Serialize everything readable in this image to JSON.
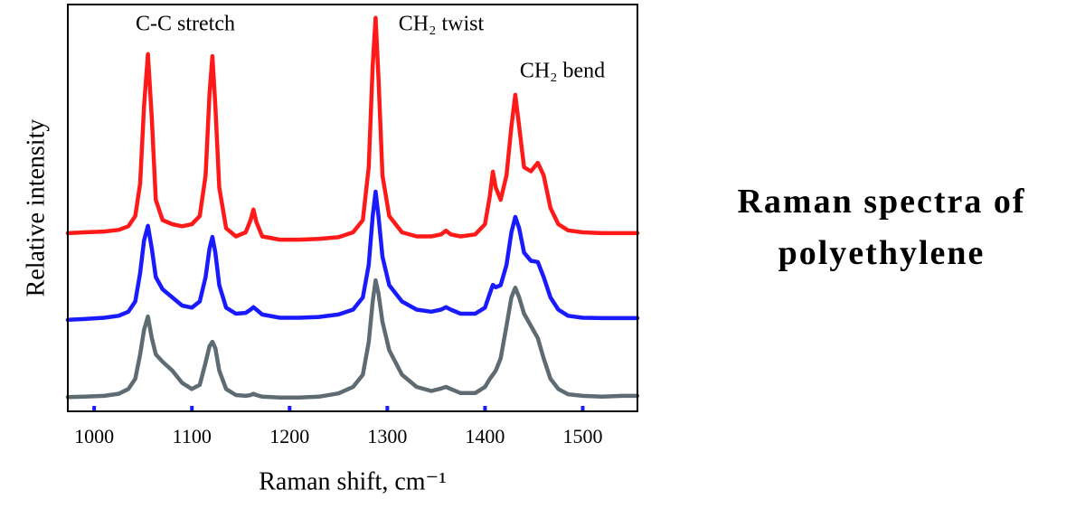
{
  "chart_data": {
    "type": "line",
    "title": "Raman spectra of polyethylene",
    "xlabel": "Raman shift, cm⁻¹",
    "ylabel": "Relative intensity",
    "annotations": [
      "C-C stretch",
      "CH₂ twist",
      "CH₂ bend"
    ],
    "xlim": [
      973,
      1556
    ],
    "xticks": [
      1000,
      1100,
      1200,
      1300,
      1400,
      1500
    ],
    "ylim": [
      0,
      100
    ],
    "x": [
      973,
      990,
      1010,
      1025,
      1035,
      1042,
      1047,
      1051,
      1055,
      1059,
      1063,
      1070,
      1080,
      1090,
      1100,
      1108,
      1114,
      1118,
      1121,
      1124,
      1128,
      1135,
      1145,
      1155,
      1160,
      1163,
      1166,
      1172,
      1190,
      1210,
      1230,
      1250,
      1265,
      1275,
      1281,
      1285,
      1288,
      1291,
      1295,
      1302,
      1315,
      1330,
      1345,
      1355,
      1360,
      1365,
      1375,
      1390,
      1400,
      1405,
      1408,
      1411,
      1416,
      1422,
      1427,
      1431,
      1435,
      1440,
      1447,
      1454,
      1460,
      1467,
      1475,
      1485,
      1500,
      1520,
      1540,
      1556
    ],
    "series": [
      {
        "color": "#ff1a1a",
        "values": [
          43.8,
          44,
          44.2,
          44.6,
          45.5,
          48,
          56,
          75,
          87.8,
          72,
          52,
          47,
          46,
          45.5,
          46,
          48,
          58,
          78,
          87.3,
          75,
          55,
          45,
          43,
          44,
          47,
          49.6,
          46.5,
          43,
          42.2,
          42.2,
          42.4,
          42.8,
          44,
          47,
          60,
          85,
          96.7,
          82,
          58,
          48,
          44,
          43,
          43,
          43.5,
          44.4,
          43.5,
          43,
          43.5,
          46,
          53,
          58.9,
          55,
          52,
          58,
          70,
          77.8,
          70,
          60,
          59,
          61.1,
          58,
          50,
          46,
          44.5,
          44,
          43.8,
          43.8,
          43.8
        ]
      },
      {
        "color": "#1a1aff",
        "values": [
          22.5,
          22.7,
          23,
          23.5,
          24.5,
          27,
          34,
          42,
          45.6,
          40,
          33,
          30,
          28,
          26,
          25.5,
          27,
          33,
          40,
          42.9,
          39,
          31,
          25.5,
          24,
          24.2,
          25,
          25.6,
          25,
          23.8,
          23,
          23,
          23.2,
          23.8,
          25,
          28,
          36,
          48,
          54,
          48,
          38,
          31,
          27,
          25,
          24.5,
          25,
          25.6,
          25,
          24,
          24,
          25.5,
          29,
          31.1,
          30.5,
          31,
          36,
          44,
          47.8,
          45,
          39,
          37,
          36.7,
          33,
          28,
          25,
          23.5,
          23,
          22.9,
          22.9,
          22.9
        ]
      },
      {
        "color": "#5f6b73",
        "values": [
          3.5,
          3.6,
          3.8,
          4.3,
          5.5,
          8,
          14,
          20,
          23.3,
          18,
          14,
          12.2,
          10,
          7,
          5.5,
          6.5,
          12,
          16,
          17.1,
          15.5,
          10,
          5.5,
          4,
          3.8,
          4,
          4.3,
          4,
          3.6,
          3.4,
          3.4,
          3.6,
          4.4,
          6,
          9,
          17,
          27,
          32.2,
          29,
          22,
          15,
          9,
          6,
          5,
          5.6,
          6,
          5.5,
          4.5,
          4.5,
          6,
          8,
          9,
          10,
          13,
          21,
          28,
          30.4,
          28,
          24,
          21,
          18,
          13,
          8,
          5.5,
          4.2,
          3.8,
          3.6,
          3.8,
          3.8
        ]
      }
    ]
  }
}
